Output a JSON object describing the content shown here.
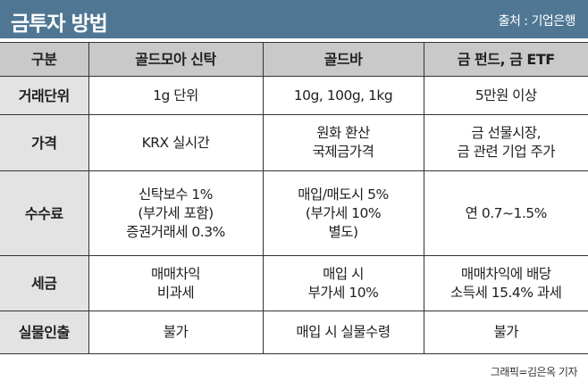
{
  "title": "금투자 방법",
  "source": "출처 : 기업은행",
  "credit": "그래픽=김은옥 기자",
  "table": {
    "headers": [
      "구분",
      "골드모아 신탁",
      "골드바",
      "금 펀드, 금 ETF"
    ],
    "rows": [
      {
        "label": "거래단위",
        "cells": [
          "1g 단위",
          "10g, 100g, 1kg",
          "5만원 이상"
        ]
      },
      {
        "label": "가격",
        "cells": [
          "KRX 실시간",
          "원화 환산\n국제금가격",
          "금 선물시장,\n금 관련 기업 주가"
        ]
      },
      {
        "label": "수수료",
        "cells": [
          "신탁보수 1%\n(부가세 포함)\n증권거래세 0.3%",
          "매입/매도시 5%\n(부가세 10%\n별도)",
          "연 0.7~1.5%"
        ]
      },
      {
        "label": "세금",
        "cells": [
          "매매차익\n비과세",
          "매입 시\n부가세 10%",
          "매매차익에 배당\n소득세 15.4% 과세"
        ]
      },
      {
        "label": "실물인출",
        "cells": [
          "불가",
          "매입 시 실물수령",
          "불가"
        ]
      }
    ]
  }
}
